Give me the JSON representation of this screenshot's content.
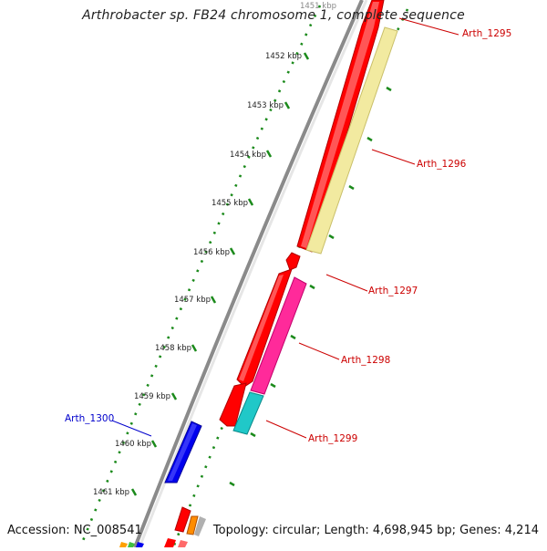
{
  "title": "Arthrobacter sp. FB24 chromosome 1, complete sequence",
  "footer": {
    "accession": "Accession: NC_008541",
    "topology": "Topology: circular; Length: 4,698,945 bp; Genes: 4,214"
  },
  "ticks": [
    "1451 kbp",
    "1452 kbp",
    "1453 kbp",
    "1454 kbp",
    "1455 kbp",
    "1456 kbp",
    "1457 kbp",
    "1458 kbp",
    "1459 kbp",
    "1460 kbp",
    "1461 kbp"
  ],
  "genes": [
    {
      "name": "Arth_1295",
      "color": "#cc0000"
    },
    {
      "name": "Arth_1296",
      "color": "#cc0000"
    },
    {
      "name": "Arth_1297",
      "color": "#cc0000"
    },
    {
      "name": "Arth_1298",
      "color": "#cc0000"
    },
    {
      "name": "Arth_1299",
      "color": "#cc0000"
    },
    {
      "name": "Arth_1300",
      "color": "#0000cc"
    }
  ],
  "colors": {
    "cds": "#ff0000",
    "cds_light": "#ff6a6a",
    "hit_yellow": "#f2eaa0",
    "hit_pink": "#ff2a9a",
    "hit_cyan": "#20c8c8",
    "reverse_cds": "#0000ee",
    "backbone": "#8a8a8a",
    "tick_dots": "#1b8a1b"
  }
}
